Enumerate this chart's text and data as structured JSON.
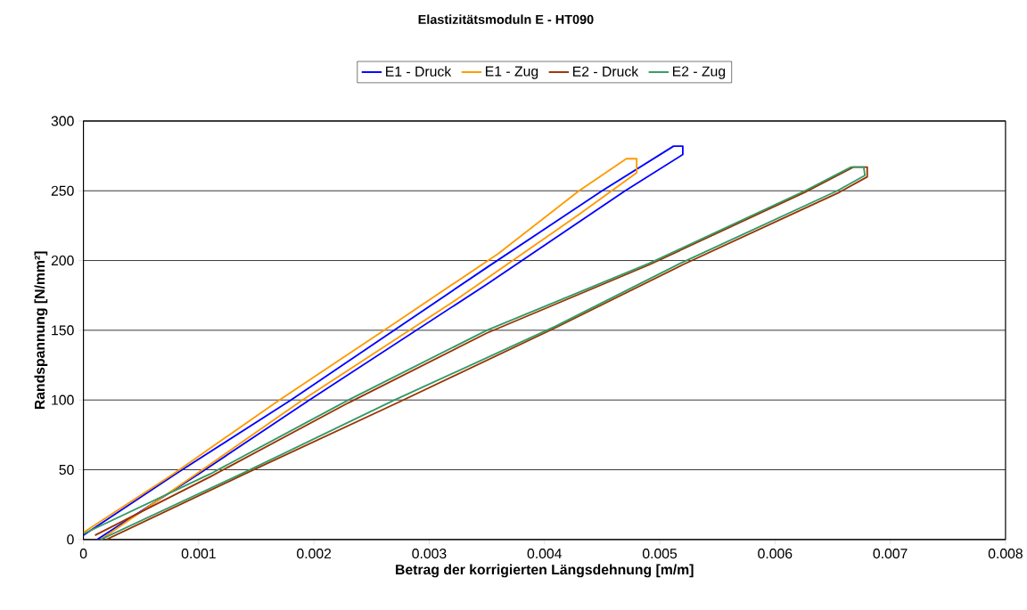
{
  "chart_data": {
    "type": "line",
    "title": "Elastizitätsmoduln E  -  HT090",
    "xlabel": "Betrag der korrigierten Längsdehnung  [m/m]",
    "ylabel": "Randspannung [N/mm²]",
    "xlim": [
      0,
      0.008
    ],
    "xticks": [
      0,
      0.001,
      0.002,
      0.003,
      0.004,
      0.005,
      0.006,
      0.007,
      0.008
    ],
    "ylim": [
      0,
      300
    ],
    "yticks": [
      0,
      50,
      100,
      150,
      200,
      250,
      300
    ],
    "grid": "y",
    "legend": "top",
    "marker": "none",
    "line_style": "solid",
    "series": [
      {
        "name": "E1 - Druck",
        "color": "#0000ff",
        "x": [
          0,
          0.0008,
          0.0018,
          0.0035,
          0.0045,
          0.00512,
          0.0052,
          0.0052,
          0.0047,
          0.0035,
          0.00196,
          0.001,
          0.00012
        ],
        "values": [
          3,
          47,
          100,
          195,
          250,
          282,
          282,
          276,
          250,
          183,
          100,
          47,
          0
        ]
      },
      {
        "name": "E1 - Zug",
        "color": "#ff9900",
        "x": [
          0,
          0.00078,
          0.0017,
          0.0027,
          0.0036,
          0.0043,
          0.00471,
          0.0048,
          0.0048,
          0.0043,
          0.0032,
          0.0019,
          0.00098,
          0.00015
        ],
        "values": [
          5,
          47,
          100,
          155,
          205,
          250,
          273,
          273,
          263,
          233,
          170,
          100,
          47,
          0
        ]
      },
      {
        "name": "E2 - Druck",
        "color": "#993300",
        "x": [
          0.0001,
          0.0011,
          0.0023,
          0.0035,
          0.00491,
          0.00626,
          0.00668,
          0.0068,
          0.0068,
          0.00656,
          0.0052,
          0.0041,
          0.00275,
          0.0014,
          0.0002
        ],
        "values": [
          3,
          45,
          98,
          148,
          197,
          249,
          267,
          267,
          260,
          249,
          197,
          152,
          99,
          47,
          0
        ]
      },
      {
        "name": "E2 - Zug",
        "color": "#339966",
        "x": [
          0,
          0.0011,
          0.0023,
          0.0035,
          0.00491,
          0.00626,
          0.00666,
          0.00677,
          0.00678,
          0.00654,
          0.00518,
          0.0041,
          0.0027,
          0.00137,
          0.00015
        ],
        "values": [
          4,
          47,
          100,
          150,
          198,
          250,
          267,
          267,
          261,
          250,
          198,
          153,
          100,
          47,
          0
        ]
      }
    ]
  }
}
